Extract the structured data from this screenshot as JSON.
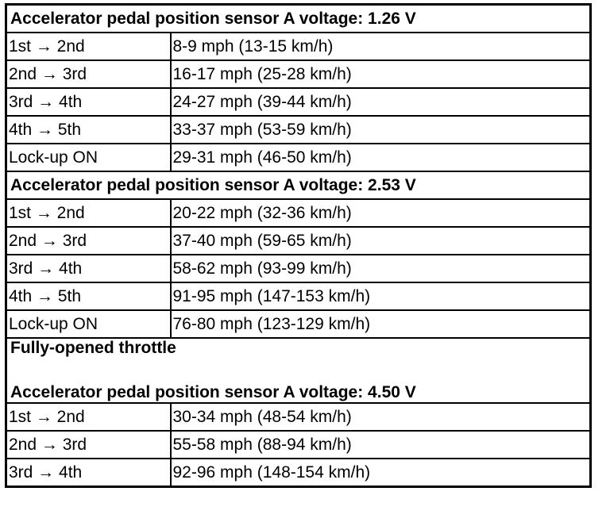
{
  "sections": [
    {
      "title": [
        "Accelerator pedal position sensor A voltage: 1.26 V"
      ],
      "rows": [
        [
          "1st → 2nd",
          "8-9 mph (13-15 km/h)"
        ],
        [
          "2nd → 3rd",
          "16-17 mph (25-28 km/h)"
        ],
        [
          "3rd → 4th",
          "24-27 mph (39-44 km/h)"
        ],
        [
          "4th → 5th",
          "33-37 mph (53-59 km/h)"
        ],
        [
          "Lock-up ON",
          "29-31 mph (46-50 km/h)"
        ]
      ]
    },
    {
      "title": [
        "Accelerator pedal position sensor A voltage: 2.53 V"
      ],
      "rows": [
        [
          "1st → 2nd",
          "20-22 mph (32-36 km/h)"
        ],
        [
          "2nd → 3rd",
          "37-40 mph (59-65 km/h)"
        ],
        [
          "3rd → 4th",
          "58-62 mph (93-99 km/h)"
        ],
        [
          "4th → 5th",
          "91-95 mph (147-153 km/h)"
        ],
        [
          "Lock-up ON",
          "76-80 mph (123-129 km/h)"
        ]
      ]
    },
    {
      "title": [
        "Fully-opened throttle",
        "Accelerator pedal position sensor A voltage: 4.50 V"
      ],
      "rows": [
        [
          "1st → 2nd",
          "30-34 mph (48-54 km/h)"
        ],
        [
          "2nd → 3rd",
          "55-58 mph (88-94 km/h)"
        ],
        [
          "3rd → 4th",
          "92-96 mph (148-154 km/h)"
        ]
      ]
    }
  ]
}
